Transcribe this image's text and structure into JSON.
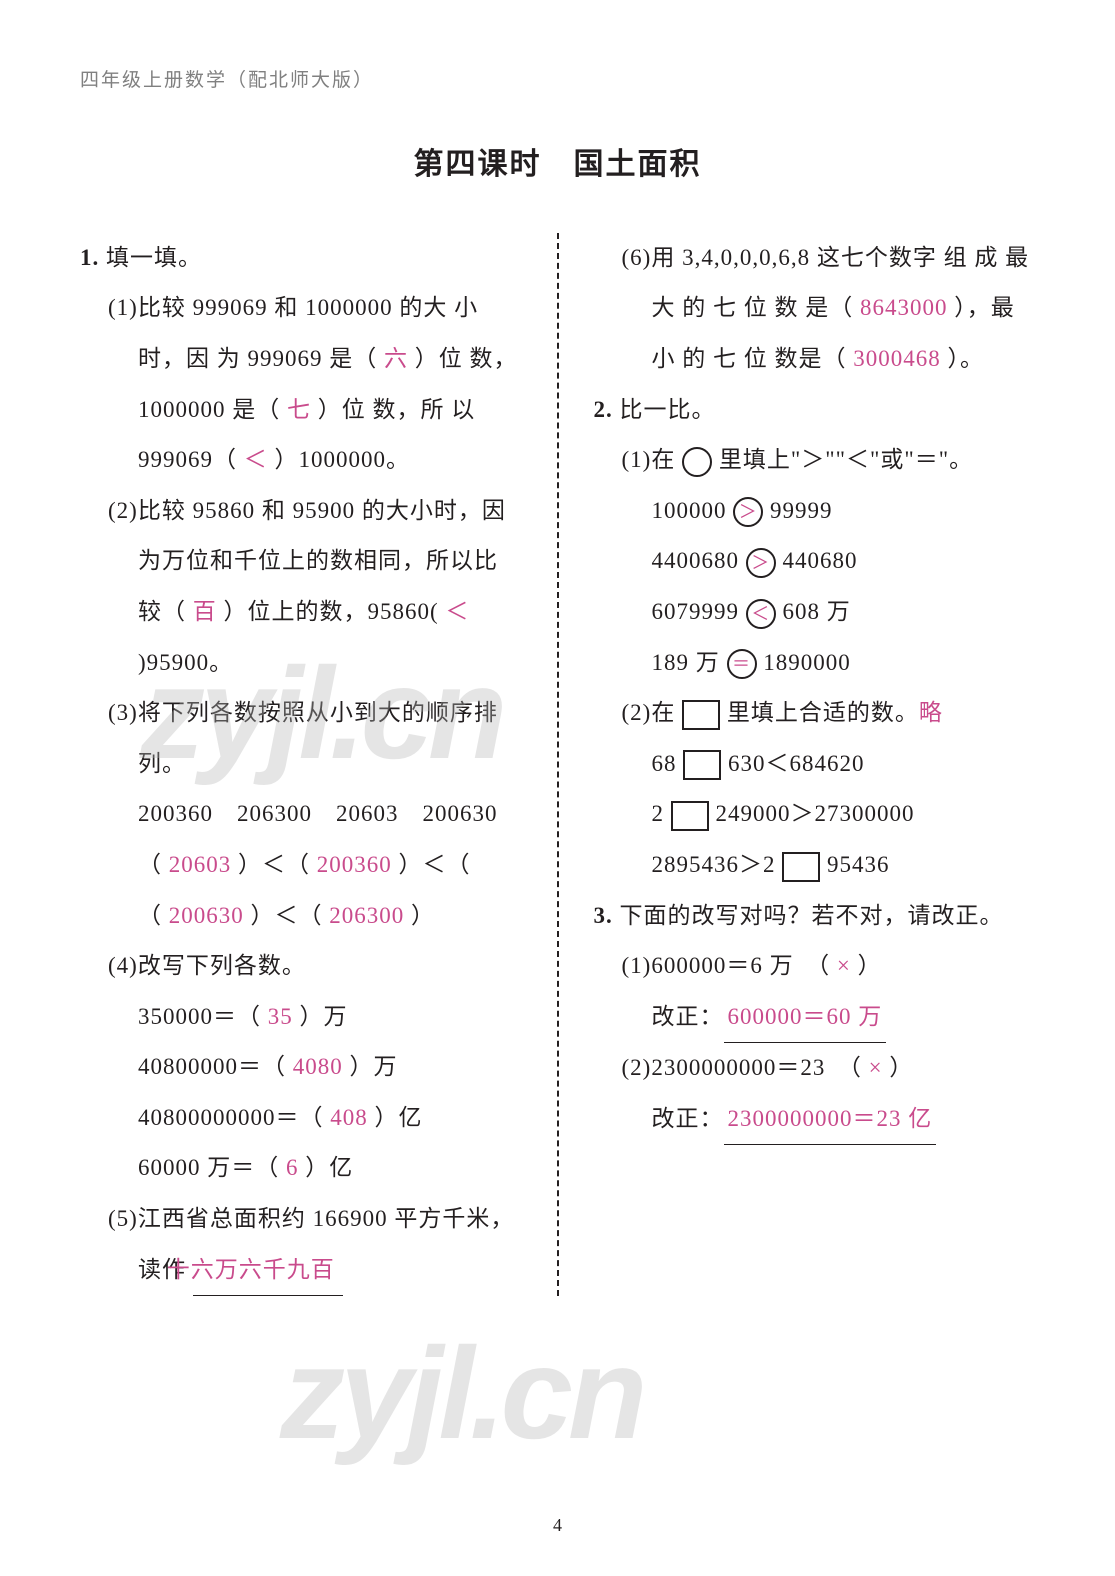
{
  "header": "四年级上册数学（配北师大版）",
  "title": "第四课时　国土面积",
  "page_number": "4",
  "watermark_text": "zyjl.cn",
  "answer_color": "#c94b8c",
  "text_color": "#231f20",
  "gray_color": "#808080",
  "bg_color": "#ffffff",
  "section1": {
    "label": "1.",
    "title": "填一填。",
    "q1": {
      "num": "(1)",
      "t1": "比较 999069 和 1000000 的大 小 时，因 为  999069  是（ ",
      "a1": "六",
      "t2": " ）位 数，1000000 是（ ",
      "a2": "七",
      "t3": " ）位 数，所 以 999069（ ",
      "a3": "＜",
      "t4": " ）1000000。"
    },
    "q2": {
      "num": "(2)",
      "t1": "比较 95860 和 95900 的大小时，因为万位和千位上的数相同，所以比较（ ",
      "a1": "百",
      "t2": " ）位上的数，95860( ",
      "a2": "＜",
      "t3": " )95900。"
    },
    "q3": {
      "num": "(3)",
      "t1": "将下列各数按照从小到大的顺序排列。",
      "nums": "200360　206300　20603　200630",
      "p1": "（ ",
      "a1": "20603",
      "p2": " ）＜（ ",
      "a2": "200360",
      "p3": " ）＜（ ",
      "a3": "200630",
      "p4": " ）＜（ ",
      "a4": "206300",
      "p5": " ）"
    },
    "q4": {
      "num": "(4)",
      "t1": "改写下列各数。",
      "l1a": "350000＝（ ",
      "l1ans": "35",
      "l1b": " ）万",
      "l2a": "40800000＝（ ",
      "l2ans": "4080",
      "l2b": " ）万",
      "l3a": "40800000000＝（ ",
      "l3ans": "408",
      "l3b": " ）亿",
      "l4a": "60000 万＝（ ",
      "l4ans": "6",
      "l4b": " ）亿"
    },
    "q5": {
      "num": "(5)",
      "t1": "江西省总面积约 166900 平方千米，读作",
      "ans": "十六万六千九百"
    },
    "q6": {
      "num": "(6)",
      "t1": "用 3,4,0,0,0,6,8 这七个数字 组 成 最 大 的 七 位 数 是（ ",
      "a1": "8643000",
      "t2": " ），最 小 的 七 位 数是（ ",
      "a2": "3000468",
      "t3": " ）。"
    }
  },
  "section2": {
    "label": "2.",
    "title": "比一比。",
    "q1": {
      "num": "(1)",
      "t1": "在",
      "t2": "里填上\"＞\"\"＜\"或\"＝\"。",
      "c1a": "100000",
      "c1op": "＞",
      "c1b": "99999",
      "c2a": "4400680",
      "c2op": "＞",
      "c2b": "440680",
      "c3a": "6079999",
      "c3op": "＜",
      "c3b": "608 万",
      "c4a": "189 万",
      "c4op": "＝",
      "c4b": "1890000"
    },
    "q2": {
      "num": "(2)",
      "t1": "在",
      "t2": "里填上合适的数。",
      "note": "略",
      "l1a": "68",
      "l1b": "630＜684620",
      "l2a": "2",
      "l2b": "249000＞27300000",
      "l3a": "2895436＞2",
      "l3b": "95436"
    }
  },
  "section3": {
    "label": "3.",
    "title": "下面的改写对吗？若不对，请改正。",
    "q1": {
      "num": "(1)",
      "t1": "600000＝6 万　（ ",
      "mark": "×",
      "t2": " ）",
      "fix_label": "改正：",
      "fix": "600000＝60 万"
    },
    "q2": {
      "num": "(2)",
      "t1": "2300000000＝23　（ ",
      "mark": "×",
      "t2": " ）",
      "fix_label": "改正：",
      "fix": "2300000000＝23 亿"
    }
  }
}
